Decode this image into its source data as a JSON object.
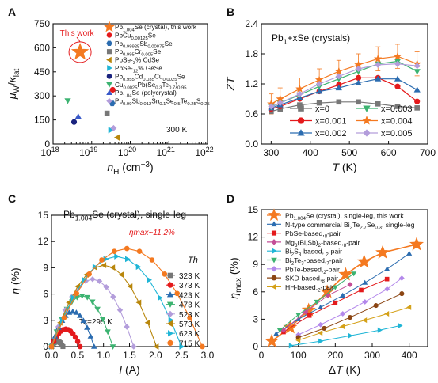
{
  "chart_data": [
    {
      "panel": "A",
      "type": "scatter",
      "xlabel": "n_H (cm^-3)",
      "ylabel": "μ_W/κ_lat",
      "xscale": "log",
      "xlim": [
        1e+18,
        1e+22
      ],
      "ylim": [
        0,
        750
      ],
      "x_ticks": [
        18,
        19,
        20,
        21,
        22
      ],
      "y_ticks": [
        0,
        150,
        300,
        450,
        600,
        750
      ],
      "annotation_text": "300 K",
      "callout_text": "This work",
      "legend": [
        {
          "label": "Pb1.004Se (crystal), this work",
          "color": "#f47920",
          "marker": "star"
        },
        {
          "label": "PbCu0.00125Se",
          "color": "#e41a1c",
          "marker": "circle"
        },
        {
          "label": "Pb0.99925Sb0.00075Se",
          "color": "#2b6cb0",
          "marker": "hexagon"
        },
        {
          "label": "Pb0.995Cr0.005Se",
          "color": "#777777",
          "marker": "square"
        },
        {
          "label": "PbSe-3% CdSe",
          "color": "#b8860b",
          "marker": "triangle-left"
        },
        {
          "label": "PbSe-12% GeSe",
          "color": "#1fb5d6",
          "marker": "triangle-right"
        },
        {
          "label": "Pb0.955Cd0.035Cu0.0025Se",
          "color": "#1a237e",
          "marker": "circle"
        },
        {
          "label": "Cu0.0025Pb(Se0.3Te0.7)0.95",
          "color": "#3cb371",
          "marker": "triangle-down"
        },
        {
          "label": "Pb1.04Se (polycrystal)",
          "color": "#3959c9",
          "marker": "triangle-up"
        },
        {
          "label": "Pb0.99Sb0.012Sn0.1Se0.5Te0.25S0.25",
          "color": "#b39ddb",
          "marker": "diamond"
        }
      ],
      "points": [
        {
          "series": 0,
          "x": 5e+18,
          "y": 573
        },
        {
          "series": 1,
          "x": 3.5e+19,
          "y": 338
        },
        {
          "series": 2,
          "x": 3.4e+19,
          "y": 253
        },
        {
          "series": 3,
          "x": 2.5e+19,
          "y": 192
        },
        {
          "series": 4,
          "x": 4.6e+19,
          "y": 41
        },
        {
          "series": 5,
          "x": 3.1e+19,
          "y": 87
        },
        {
          "series": 6,
          "x": 3.5e+18,
          "y": 137
        },
        {
          "series": 7,
          "x": 2.4e+18,
          "y": 270
        },
        {
          "series": 8,
          "x": 4.5e+18,
          "y": 171
        },
        {
          "series": 9,
          "x": 3.7e+19,
          "y": 99
        }
      ]
    },
    {
      "panel": "B",
      "type": "line",
      "title": "Pb1+xSe (crystals)",
      "xlabel": "T (K)",
      "ylabel": "ZT",
      "xlim": [
        275,
        700
      ],
      "ylim": [
        0,
        2.4
      ],
      "x_ticks": [
        300,
        400,
        500,
        600,
        700
      ],
      "y_ticks": [
        0,
        0.6,
        1.2,
        1.8,
        2.4
      ],
      "x": [
        300,
        323,
        373,
        423,
        473,
        523,
        573,
        623,
        673
      ],
      "series": [
        {
          "name": "x=0",
          "color": "#777777",
          "marker": "square",
          "values": [
            0.65,
            0.7,
            0.78,
            0.82,
            0.84,
            0.84,
            0.8,
            0.75,
            0.72
          ]
        },
        {
          "name": "x=0.001",
          "color": "#e41a1c",
          "marker": "circle",
          "values": [
            0.7,
            0.75,
            0.9,
            1.05,
            1.18,
            1.32,
            1.32,
            1.15,
            0.85
          ]
        },
        {
          "name": "x=0.002",
          "color": "#2b6cb0",
          "marker": "triangle-up",
          "values": [
            0.72,
            0.78,
            0.92,
            1.05,
            1.12,
            1.22,
            1.3,
            1.3,
            1.08
          ]
        },
        {
          "name": "x=0.003",
          "color": "#3cb371",
          "marker": "triangle-down",
          "values": [
            0.74,
            0.82,
            0.98,
            1.15,
            1.3,
            1.45,
            1.6,
            1.65,
            1.45
          ]
        },
        {
          "name": "x=0.004",
          "color": "#f47920",
          "marker": "star",
          "values": [
            0.8,
            0.9,
            1.1,
            1.28,
            1.45,
            1.58,
            1.7,
            1.75,
            1.6
          ]
        },
        {
          "name": "x=0.005",
          "color": "#b39ddb",
          "marker": "diamond",
          "values": [
            0.75,
            0.82,
            1.0,
            1.2,
            1.35,
            1.5,
            1.58,
            1.6,
            1.56
          ]
        }
      ],
      "error_series": 4,
      "error_bars": [
        0.2,
        0.22,
        0.22,
        0.22,
        0.22,
        0.22,
        0.24,
        0.24,
        0.24
      ]
    },
    {
      "panel": "C",
      "type": "line",
      "title": "Pb1.004Se (crystal), single-leg",
      "annotation_eta": "ηmax~11.2%",
      "annotation_tc": "Tc=295 K",
      "legend_title": "Th",
      "xlabel": "I (A)",
      "ylabel": "η (%)",
      "xlim": [
        0,
        3
      ],
      "ylim": [
        0,
        15
      ],
      "x_ticks": [
        0.0,
        0.5,
        1.0,
        1.5,
        2.0,
        2.5,
        3.0
      ],
      "y_ticks": [
        0,
        3,
        6,
        9,
        12,
        15
      ],
      "series": [
        {
          "name": "323 K",
          "color": "#777777",
          "marker": "square",
          "imax": 0.22,
          "peak": 0.6
        },
        {
          "name": "373 K",
          "color": "#e41a1c",
          "marker": "circle",
          "imax": 0.55,
          "peak": 2.0
        },
        {
          "name": "423 K",
          "color": "#2b6cb0",
          "marker": "triangle-up",
          "imax": 0.82,
          "peak": 4.0
        },
        {
          "name": "473 K",
          "color": "#3cb371",
          "marker": "triangle-down",
          "imax": 1.18,
          "peak": 5.8
        },
        {
          "name": "523 K",
          "color": "#b39ddb",
          "marker": "diamond",
          "imax": 1.58,
          "peak": 7.7
        },
        {
          "name": "573 K",
          "color": "#b8860b",
          "marker": "triangle-left",
          "imax": 2.02,
          "peak": 9.3
        },
        {
          "name": "623 K",
          "color": "#1fb5d6",
          "marker": "triangle-right",
          "imax": 2.5,
          "peak": 10.3
        },
        {
          "name": "715 K",
          "color": "#f47920",
          "marker": "circle",
          "imax": 2.9,
          "peak": 11.2
        }
      ]
    },
    {
      "panel": "D",
      "type": "line",
      "xlabel": "ΔT (K)",
      "ylabel": "η_max (%)",
      "xlim": [
        0,
        450
      ],
      "ylim": [
        0,
        15
      ],
      "x_ticks": [
        0,
        100,
        200,
        300,
        400
      ],
      "y_ticks": [
        0,
        3,
        6,
        9,
        12,
        15
      ],
      "series": [
        {
          "name": "Pb1.004Se (crystal), single-leg, this work",
          "color": "#f47920",
          "marker": "star",
          "x": [
            28,
            78,
            128,
            178,
            228,
            278,
            328,
            420
          ],
          "y": [
            0.6,
            2.1,
            4.0,
            6.0,
            7.9,
            9.3,
            10.3,
            11.2
          ]
        },
        {
          "name": "N-type commercial Bi2Te2.7Se0.3, single-leg",
          "color": "#2b6cb0",
          "marker": "triangle-up",
          "x": [
            40,
            100,
            160,
            220,
            280,
            340,
            400
          ],
          "y": [
            1.4,
            3.0,
            4.3,
            5.6,
            7.0,
            8.5,
            10.2
          ]
        },
        {
          "name": "PbSe-based,8-pair",
          "color": "#e41a1c",
          "marker": "square",
          "x": [
            60,
            130,
            200,
            270,
            340
          ],
          "y": [
            1.6,
            3.4,
            4.8,
            6.2,
            7.4
          ]
        },
        {
          "name": "Mg3(Bi,Sb)2-based,8-pair",
          "color": "#c44e97",
          "marker": "diamond",
          "x": [
            60,
            120,
            180,
            240
          ],
          "y": [
            1.8,
            3.8,
            5.6,
            6.8
          ]
        },
        {
          "name": "Bi2S3-based, 2-pair",
          "color": "#1fb5d6",
          "marker": "triangle-right",
          "x": [
            80,
            160,
            240,
            320,
            375
          ],
          "y": [
            0.1,
            0.6,
            1.2,
            1.8,
            2.3
          ]
        },
        {
          "name": "Bi2Te3-based,7-pair",
          "color": "#3cb371",
          "marker": "triangle-down",
          "x": [
            50,
            100,
            150,
            200,
            250
          ],
          "y": [
            1.8,
            3.5,
            4.9,
            6.5,
            8.0
          ]
        },
        {
          "name": "PbTe-based,2-pair",
          "color": "#b388eb",
          "marker": "diamond",
          "x": [
            100,
            160,
            220,
            280,
            340,
            380
          ],
          "y": [
            1.3,
            2.4,
            3.6,
            4.9,
            6.3,
            7.5
          ]
        },
        {
          "name": "SKD-based,8-pair",
          "color": "#8b4513",
          "marker": "circle",
          "x": [
            100,
            170,
            240,
            310,
            380
          ],
          "y": [
            1.0,
            2.0,
            3.2,
            4.5,
            5.8
          ]
        },
        {
          "name": "HH-based,2-pair",
          "color": "#d4a017",
          "marker": "triangle-left",
          "x": [
            100,
            160,
            220,
            280,
            340,
            400
          ],
          "y": [
            0.7,
            1.5,
            2.2,
            2.9,
            3.6,
            4.3
          ]
        }
      ]
    }
  ]
}
